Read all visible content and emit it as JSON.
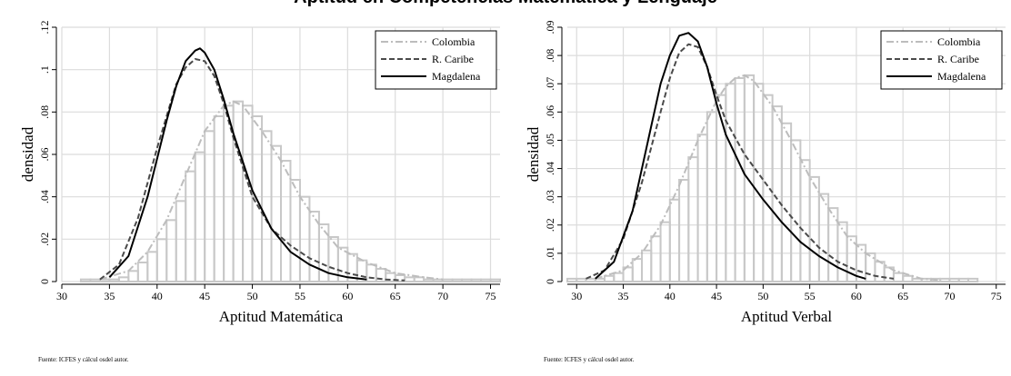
{
  "title": "Aptitud en Competencias Matemática y Lenguaje",
  "chart_data": [
    {
      "type": "line",
      "xlabel": "Aptitud Matemática",
      "ylabel": "densidad",
      "xlim": [
        30,
        76
      ],
      "ylim": [
        0,
        0.12
      ],
      "xticks": [
        "30",
        "35",
        "40",
        "45",
        "50",
        "55",
        "60",
        "65",
        "70",
        "75"
      ],
      "yticks": [
        "0",
        ".02",
        ".04",
        ".06",
        ".08",
        ".1",
        ".12"
      ],
      "grid": true,
      "legend_position": "top-right",
      "source": "Fuente: ICFES y cálcul osdel autor.",
      "series": [
        {
          "name": "Colombia",
          "style": "dash-dot",
          "color": "#bdbdbd",
          "x": [
            34,
            37,
            39,
            41,
            43,
            45,
            47,
            48,
            49,
            51,
            53,
            55,
            57,
            59,
            62,
            65,
            68,
            70
          ],
          "y": [
            0.001,
            0.005,
            0.014,
            0.029,
            0.05,
            0.071,
            0.083,
            0.085,
            0.083,
            0.071,
            0.057,
            0.04,
            0.027,
            0.016,
            0.009,
            0.004,
            0.002,
            0.001
          ]
        },
        {
          "name": "R. Caribe",
          "style": "dash",
          "color": "#4a4a4a",
          "x": [
            34,
            36,
            38,
            40,
            42,
            43,
            44,
            45,
            46,
            47,
            48,
            50,
            52,
            54,
            56,
            58,
            60,
            62,
            64,
            66
          ],
          "y": [
            0.001,
            0.008,
            0.03,
            0.063,
            0.093,
            0.101,
            0.105,
            0.104,
            0.097,
            0.084,
            0.068,
            0.04,
            0.025,
            0.017,
            0.011,
            0.007,
            0.004,
            0.002,
            0.001,
            0.0005
          ]
        },
        {
          "name": "Magdalena",
          "style": "solid",
          "color": "#000000",
          "x": [
            35,
            37,
            39,
            41,
            42,
            43,
            44,
            44.5,
            45,
            46,
            47,
            48,
            50,
            52,
            54,
            56,
            58,
            60,
            62
          ],
          "y": [
            0.002,
            0.012,
            0.04,
            0.076,
            0.092,
            0.104,
            0.109,
            0.11,
            0.108,
            0.1,
            0.086,
            0.07,
            0.043,
            0.025,
            0.014,
            0.008,
            0.004,
            0.002,
            0.001
          ]
        }
      ],
      "histogram": {
        "name": "Colombia",
        "bin_width": 1,
        "x": [
          32,
          33,
          34,
          35,
          36,
          37,
          38,
          39,
          40,
          41,
          42,
          43,
          44,
          45,
          46,
          47,
          48,
          49,
          50,
          51,
          52,
          53,
          54,
          55,
          56,
          57,
          58,
          59,
          60,
          61,
          62,
          63,
          64,
          65,
          66,
          67,
          68,
          69,
          70,
          71,
          72,
          73,
          74,
          75
        ],
        "y": [
          0.001,
          0.001,
          0.001,
          0.001,
          0.002,
          0.005,
          0.009,
          0.014,
          0.02,
          0.029,
          0.038,
          0.052,
          0.061,
          0.071,
          0.078,
          0.083,
          0.085,
          0.083,
          0.078,
          0.071,
          0.064,
          0.057,
          0.048,
          0.04,
          0.033,
          0.027,
          0.021,
          0.016,
          0.013,
          0.01,
          0.008,
          0.006,
          0.004,
          0.003,
          0.002,
          0.002,
          0.001,
          0.001,
          0.001,
          0.001,
          0.001,
          0.001,
          0.001,
          0.001
        ]
      }
    },
    {
      "type": "line",
      "xlabel": "Aptitud Verbal",
      "ylabel": "densidad",
      "xlim": [
        29,
        76
      ],
      "ylim": [
        0,
        0.09
      ],
      "xticks": [
        "30",
        "35",
        "40",
        "45",
        "50",
        "55",
        "60",
        "65",
        "70",
        "75"
      ],
      "yticks": [
        "0",
        ".01",
        ".02",
        ".03",
        ".04",
        ".05",
        ".06",
        ".07",
        ".08",
        ".09"
      ],
      "grid": true,
      "legend_position": "top-right",
      "source": "Fuente: ICFES y cálcul osdel autor.",
      "series": [
        {
          "name": "Colombia",
          "style": "dash-dot",
          "color": "#bdbdbd",
          "x": [
            32,
            35,
            37,
            39,
            41,
            43,
            45,
            46,
            47,
            48,
            49,
            51,
            53,
            55,
            57,
            59,
            61,
            64,
            67,
            69
          ],
          "y": [
            0.001,
            0.004,
            0.01,
            0.02,
            0.034,
            0.05,
            0.064,
            0.069,
            0.072,
            0.073,
            0.071,
            0.062,
            0.05,
            0.037,
            0.026,
            0.016,
            0.01,
            0.004,
            0.001,
            0.0005
          ]
        },
        {
          "name": "R. Caribe",
          "style": "dash",
          "color": "#4a4a4a",
          "x": [
            31,
            33,
            35,
            37,
            39,
            40,
            41,
            42,
            43,
            44,
            45,
            46,
            48,
            50,
            52,
            54,
            56,
            58,
            60,
            62,
            64
          ],
          "y": [
            0.001,
            0.004,
            0.015,
            0.035,
            0.06,
            0.072,
            0.081,
            0.084,
            0.083,
            0.076,
            0.066,
            0.057,
            0.045,
            0.036,
            0.027,
            0.019,
            0.012,
            0.007,
            0.004,
            0.002,
            0.001
          ]
        },
        {
          "name": "Magdalena",
          "style": "solid",
          "color": "#000000",
          "x": [
            32,
            34,
            36,
            38,
            39,
            40,
            41,
            42,
            43,
            44,
            45,
            46,
            48,
            50,
            52,
            54,
            56,
            58,
            60,
            61
          ],
          "y": [
            0.001,
            0.007,
            0.025,
            0.055,
            0.07,
            0.08,
            0.087,
            0.088,
            0.085,
            0.076,
            0.063,
            0.052,
            0.038,
            0.029,
            0.021,
            0.014,
            0.009,
            0.005,
            0.002,
            0.001
          ]
        }
      ],
      "histogram": {
        "name": "Colombia",
        "bin_width": 1,
        "x": [
          29,
          30,
          31,
          32,
          33,
          34,
          35,
          36,
          37,
          38,
          39,
          40,
          41,
          42,
          43,
          44,
          45,
          46,
          47,
          48,
          49,
          50,
          51,
          52,
          53,
          54,
          55,
          56,
          57,
          58,
          59,
          60,
          61,
          62,
          63,
          64,
          65,
          66,
          67,
          68,
          69,
          70,
          71,
          72
        ],
        "y": [
          0.001,
          0.001,
          0.001,
          0.001,
          0.002,
          0.003,
          0.005,
          0.008,
          0.011,
          0.016,
          0.021,
          0.029,
          0.036,
          0.044,
          0.052,
          0.06,
          0.066,
          0.07,
          0.072,
          0.073,
          0.07,
          0.066,
          0.062,
          0.056,
          0.05,
          0.043,
          0.037,
          0.031,
          0.026,
          0.021,
          0.016,
          0.013,
          0.01,
          0.007,
          0.005,
          0.003,
          0.002,
          0.001,
          0.001,
          0.001,
          0.001,
          0.001,
          0.001,
          0.001
        ]
      }
    }
  ]
}
